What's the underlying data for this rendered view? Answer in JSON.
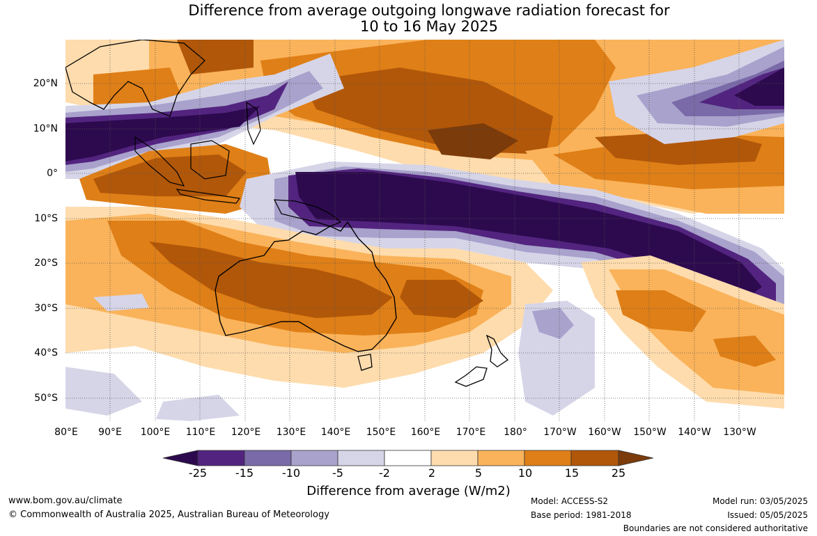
{
  "title_line1": "Difference from average outgoing longwave radiation forecast for",
  "title_line2": "10 to 16 May 2025",
  "lat_labels": [
    "20°N",
    "10°N",
    "0°",
    "10°S",
    "20°S",
    "30°S",
    "40°S",
    "50°S"
  ],
  "lon_labels": [
    "80°E",
    "90°E",
    "100°E",
    "110°E",
    "120°E",
    "130°E",
    "140°E",
    "150°E",
    "160°E",
    "170°E",
    "180°",
    "170°W",
    "160°W",
    "150°W",
    "140°W",
    "130°W"
  ],
  "colorbar": {
    "ticks": [
      "-25",
      "-15",
      "-10",
      "-5",
      "-2",
      "2",
      "5",
      "10",
      "15",
      "25"
    ],
    "colors": [
      "#2d0a4e",
      "#52247f",
      "#7a6aa8",
      "#a9a2cc",
      "#d6d5e8",
      "#ffffff",
      "#fedcad",
      "#fab35a",
      "#df7f17",
      "#b15709",
      "#7b3b0a"
    ],
    "label": "Difference from average (W/m2)"
  },
  "footer": {
    "website": "www.bom.gov.au/climate",
    "copyright": "© Commonwealth of Australia 2025, Australian Bureau of Meteorology",
    "model": "Model: ACCESS-S2",
    "base_period": "Base period: 1981-2018",
    "model_run": "Model run: 03/05/2025",
    "issued": "Issued: 05/05/2025",
    "disclaimer": "Boundaries are not considered authoritative"
  }
}
